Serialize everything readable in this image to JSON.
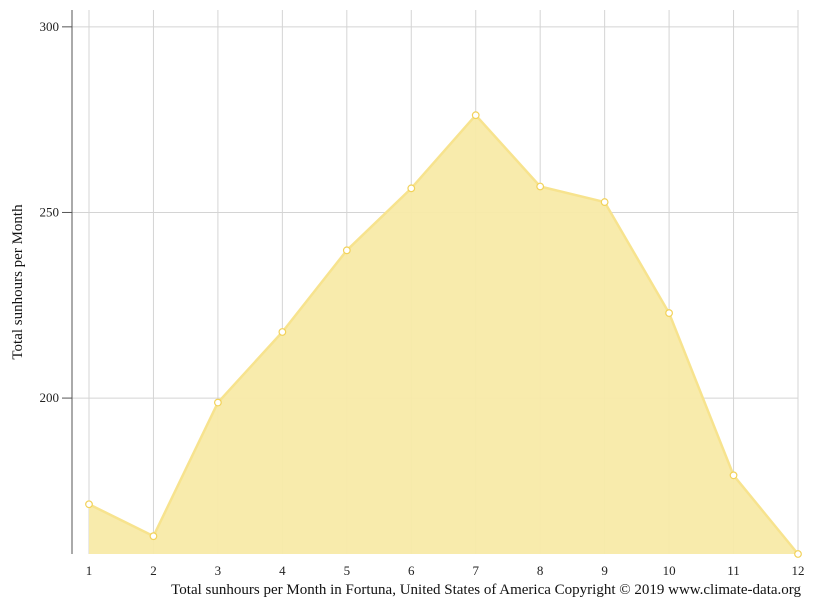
{
  "chart_data": {
    "type": "area",
    "title": "",
    "ylabel": "Total sunhours per Month",
    "xlabel": "",
    "x": [
      1,
      2,
      3,
      4,
      5,
      6,
      7,
      8,
      9,
      10,
      11,
      12
    ],
    "xticks": [
      "1",
      "2",
      "3",
      "4",
      "5",
      "6",
      "7",
      "8",
      "9",
      "10",
      "11",
      "12"
    ],
    "series": [
      {
        "values": [
          171.4,
          162.8,
          198.8,
          217.8,
          239.8,
          256.5,
          276.2,
          257.0,
          252.8,
          222.9,
          179.2,
          158.0
        ]
      }
    ],
    "yticks": [
      200,
      250,
      300
    ],
    "ylim": [
      158,
      304
    ],
    "grid": true,
    "legend": "none",
    "colors": {
      "fill": "#f8eaa8",
      "line": "#f7e38e",
      "marker_fill": "#ffffff",
      "marker_stroke": "#f2d25a",
      "grid": "#d4d4d4",
      "axis": "#555555"
    }
  },
  "caption": "Total sunhours per Month in Fortuna, United States of America Copyright © 2019 www.climate-data.org"
}
